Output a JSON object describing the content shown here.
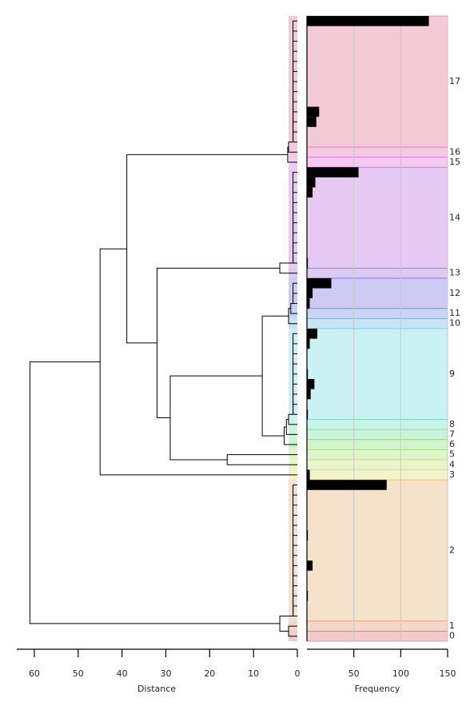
{
  "chart_data": {
    "type": "dendrogram",
    "dendrogram": {
      "xlabel": "Distance",
      "xlim": [
        64,
        0
      ],
      "xticks": [
        0,
        10,
        20,
        30,
        40,
        50,
        60
      ],
      "links": [
        [
          11,
          12,
          0,
          1,
          0
        ],
        [
          10,
          12,
          0,
          1,
          1
        ],
        [
          9,
          12,
          0,
          1,
          1
        ],
        [
          8,
          12,
          0,
          1,
          1
        ],
        [
          7,
          12,
          0,
          1,
          1
        ],
        [
          6,
          12,
          0,
          1,
          1
        ],
        [
          5,
          12,
          0,
          1,
          1
        ],
        [
          4,
          12,
          0,
          1,
          1
        ],
        [
          3,
          12,
          0,
          1,
          1
        ],
        [
          2,
          12,
          0,
          1,
          1
        ],
        [
          1,
          12,
          0,
          1,
          1
        ],
        [
          0,
          12,
          0,
          1,
          1
        ],
        [
          12,
          13,
          1,
          2,
          0
        ],
        [
          12.5,
          14,
          2,
          2.2,
          0
        ],
        [
          23,
          24,
          0,
          1,
          0
        ],
        [
          22,
          24,
          0,
          1,
          1
        ],
        [
          21,
          24,
          0,
          1,
          1
        ],
        [
          20,
          24,
          0,
          1,
          1
        ],
        [
          19,
          24,
          0,
          1,
          1
        ],
        [
          18,
          24,
          0,
          1,
          1
        ],
        [
          17,
          24,
          0,
          1,
          1
        ],
        [
          16,
          24,
          0,
          1,
          1
        ],
        [
          15,
          24,
          0,
          1,
          1
        ],
        [
          24,
          25,
          1,
          4,
          0
        ],
        [
          27,
          28,
          0,
          1,
          0
        ],
        [
          26,
          28,
          0,
          1,
          1
        ],
        [
          28,
          29,
          1,
          1.5,
          0
        ],
        [
          28.5,
          30,
          1.5,
          2,
          0
        ],
        [
          38,
          39,
          0,
          1,
          0
        ],
        [
          37,
          39,
          0,
          1,
          1
        ],
        [
          36,
          39,
          0,
          1,
          1
        ],
        [
          35,
          39,
          0,
          1,
          1
        ],
        [
          34,
          39,
          0,
          1,
          1
        ],
        [
          33,
          39,
          0,
          1,
          1
        ],
        [
          32,
          39,
          0,
          1,
          1
        ],
        [
          31,
          39,
          0,
          1,
          1
        ],
        [
          39,
          40,
          1,
          2,
          0
        ],
        [
          39.5,
          41,
          2,
          2.5,
          0
        ],
        [
          40.25,
          42,
          2.5,
          3,
          0
        ],
        [
          29.25,
          41.13,
          2,
          8,
          3
        ],
        [
          43,
          44,
          0,
          16,
          0
        ],
        [
          35.19,
          43.5,
          8,
          29,
          16
        ],
        [
          24.5,
          39.34,
          4,
          32,
          29
        ],
        [
          13.25,
          31.92,
          2.2,
          38.9,
          32
        ],
        [
          22.59,
          45,
          38.9,
          45,
          0
        ],
        [
          58,
          59,
          0,
          1,
          0
        ],
        [
          57,
          59,
          0,
          1,
          1
        ],
        [
          56,
          59,
          0,
          1,
          1
        ],
        [
          55,
          59,
          0,
          1,
          1
        ],
        [
          54,
          59,
          0,
          1,
          1
        ],
        [
          53,
          59,
          0,
          1,
          1
        ],
        [
          52,
          59,
          0,
          1,
          1
        ],
        [
          51,
          59,
          0,
          1,
          1
        ],
        [
          50,
          59,
          0,
          1,
          1
        ],
        [
          49,
          59,
          0,
          1,
          1
        ],
        [
          48,
          59,
          0,
          1,
          1
        ],
        [
          47,
          59,
          0,
          1,
          1
        ],
        [
          46,
          59,
          0,
          1,
          1
        ],
        [
          60,
          61,
          0,
          2,
          0
        ],
        [
          59,
          60.5,
          1,
          4,
          2
        ],
        [
          33.8,
          59.75,
          45,
          61,
          4
        ]
      ]
    },
    "frequency": {
      "xlabel": "Frequency",
      "xlim": [
        0,
        150
      ],
      "xticks": [
        50,
        100,
        150
      ],
      "grid": true,
      "color": "#000000",
      "values": [
        130,
        0,
        0,
        0,
        0,
        0,
        0,
        0,
        0,
        13,
        10,
        0,
        0,
        0,
        0,
        55,
        9,
        6,
        0,
        0,
        0,
        0,
        0,
        0,
        1,
        0,
        26,
        6,
        3,
        0,
        0,
        11,
        3,
        0,
        0,
        1,
        8,
        4,
        0,
        1,
        0,
        0,
        0,
        0,
        0,
        3,
        85,
        0,
        0,
        0,
        0,
        1,
        0,
        0,
        6,
        0,
        0,
        1,
        0,
        0,
        0,
        0
      ]
    },
    "clusters": [
      {
        "label": "17",
        "size": 13,
        "color": "#e0668a"
      },
      {
        "label": "16",
        "size": 1,
        "color": "#e066b0"
      },
      {
        "label": "15",
        "size": 1,
        "color": "#e066d8"
      },
      {
        "label": "14",
        "size": 10,
        "color": "#b866e0"
      },
      {
        "label": "13",
        "size": 1,
        "color": "#9466e0"
      },
      {
        "label": "12",
        "size": 3,
        "color": "#6f66e0"
      },
      {
        "label": "11",
        "size": 1,
        "color": "#6688e0"
      },
      {
        "label": "10",
        "size": 1,
        "color": "#66b0e0"
      },
      {
        "label": "9",
        "size": 9,
        "color": "#66d8e0"
      },
      {
        "label": "8",
        "size": 1,
        "color": "#66e0b8"
      },
      {
        "label": "7",
        "size": 1,
        "color": "#66e08c"
      },
      {
        "label": "6",
        "size": 1,
        "color": "#7ee066"
      },
      {
        "label": "5",
        "size": 1,
        "color": "#a4e066"
      },
      {
        "label": "4",
        "size": 1,
        "color": "#c4e066"
      },
      {
        "label": "3",
        "size": 1,
        "color": "#dede66"
      },
      {
        "label": "2",
        "size": 14,
        "color": "#e0b066"
      },
      {
        "label": "1",
        "size": 1,
        "color": "#e08a66"
      },
      {
        "label": "0",
        "size": 1,
        "color": "#e06666"
      }
    ]
  }
}
